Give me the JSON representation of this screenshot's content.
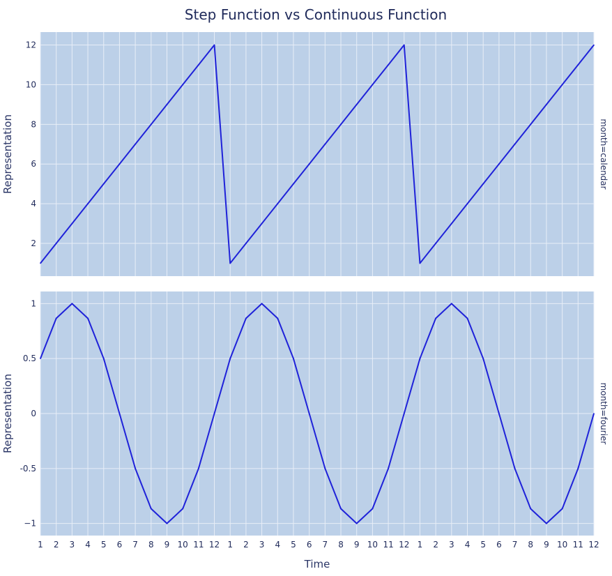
{
  "colors": {
    "plot_bg": "#bcd0e8",
    "grid": "#e8eef7",
    "line": "#1f22d9",
    "text": "#1f2a5a",
    "axis_title": "#2a3566"
  },
  "chart_data": {
    "title": "Step Function vs Continuous Function",
    "xlabel": "Time",
    "type": "line",
    "x_tick_labels": [
      "1",
      "2",
      "3",
      "4",
      "5",
      "6",
      "7",
      "8",
      "9",
      "10",
      "11",
      "12",
      "1",
      "2",
      "3",
      "4",
      "5",
      "6",
      "7",
      "8",
      "9",
      "10",
      "11",
      "12",
      "1",
      "2",
      "3",
      "4",
      "5",
      "6",
      "7",
      "8",
      "9",
      "10",
      "11",
      "12"
    ],
    "x_range": [
      0,
      35
    ],
    "panels": [
      {
        "facet_label": "month=calendar",
        "ylabel": "Representation",
        "ylim": [
          0.35,
          12.65
        ],
        "yticks": [
          2,
          4,
          6,
          8,
          10,
          12
        ],
        "ytick_labels": [
          "2",
          "4",
          "6",
          "8",
          "10",
          "12"
        ],
        "grid": true,
        "values": [
          1,
          2,
          3,
          4,
          5,
          6,
          7,
          8,
          9,
          10,
          11,
          12,
          1,
          2,
          3,
          4,
          5,
          6,
          7,
          8,
          9,
          10,
          11,
          12,
          1,
          2,
          3,
          4,
          5,
          6,
          7,
          8,
          9,
          10,
          11,
          12
        ]
      },
      {
        "facet_label": "month=fourier",
        "ylabel": "Representation",
        "ylim": [
          -1.11,
          1.11
        ],
        "yticks": [
          -1,
          -0.5,
          0,
          0.5,
          1
        ],
        "ytick_labels": [
          "−1",
          "-0.5",
          "0",
          "0.5",
          "1"
        ],
        "grid": true,
        "values": [
          0.5,
          0.866,
          1,
          0.866,
          0.5,
          0,
          -0.5,
          -0.866,
          -1,
          -0.866,
          -0.5,
          0,
          0.5,
          0.866,
          1,
          0.866,
          0.5,
          0,
          -0.5,
          -0.866,
          -1,
          -0.866,
          -0.5,
          0,
          0.5,
          0.866,
          1,
          0.866,
          0.5,
          0,
          -0.5,
          -0.866,
          -1,
          -0.866,
          -0.5,
          0
        ]
      }
    ]
  }
}
